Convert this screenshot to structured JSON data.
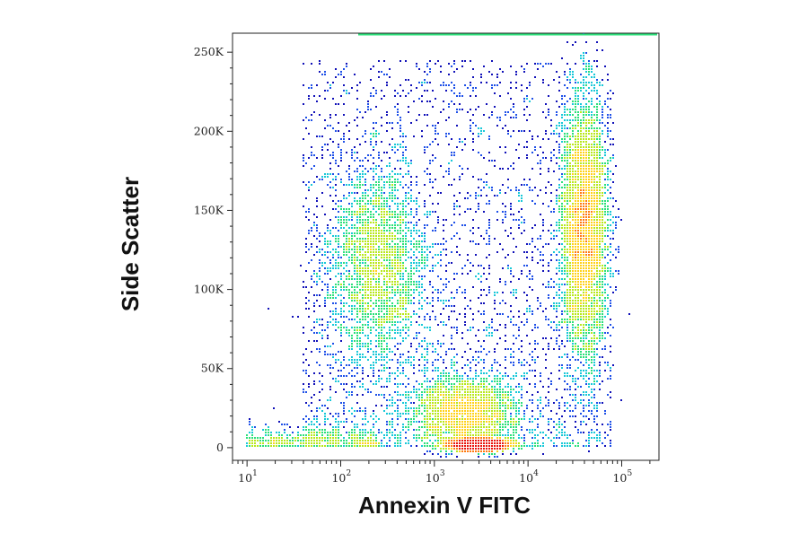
{
  "chart_data": {
    "type": "scatter",
    "subtype": "flow-cytometry density dot plot",
    "title": "",
    "xlabel": "Annexin V FITC",
    "ylabel": "Side Scatter",
    "x_scale": "log",
    "xlim": [
      7,
      250000
    ],
    "ylim": [
      -8000,
      262000
    ],
    "x_tick_labels": [
      {
        "value": 10,
        "base": "10",
        "exp": "1"
      },
      {
        "value": 100,
        "base": "10",
        "exp": "2"
      },
      {
        "value": 1000,
        "base": "10",
        "exp": "3"
      },
      {
        "value": 10000,
        "base": "10",
        "exp": "4"
      },
      {
        "value": 100000,
        "base": "10",
        "exp": "5"
      }
    ],
    "y_ticks": [
      {
        "value": 0,
        "label": "0"
      },
      {
        "value": 50000,
        "label": "50K"
      },
      {
        "value": 100000,
        "label": "100K"
      },
      {
        "value": 150000,
        "label": "150K"
      },
      {
        "value": 200000,
        "label": "200K"
      },
      {
        "value": 250000,
        "label": "250K"
      }
    ],
    "populations": [
      {
        "x_center": 250,
        "y_center": 115000,
        "x_spread_decades": 0.28,
        "y_spread": 32000,
        "relative_density": 1.0
      },
      {
        "x_center": 40000,
        "y_center": 140000,
        "x_spread_decades": 0.13,
        "y_spread": 42000,
        "relative_density": 1.6
      },
      {
        "x_center": 2000,
        "y_center": 22000,
        "x_spread_decades": 0.3,
        "y_spread": 12000,
        "relative_density": 0.8
      },
      {
        "x_center": 3000,
        "y_center": 1500,
        "x_spread_decades": 0.15,
        "y_spread": 1500,
        "relative_density": 0.9
      }
    ],
    "grid": false,
    "legend": "none",
    "density_colors": [
      "#1010b8",
      "#1e50e8",
      "#18c8d8",
      "#2ce07a",
      "#b8e81c",
      "#ffd21a",
      "#ff7a10",
      "#e8140e"
    ]
  }
}
